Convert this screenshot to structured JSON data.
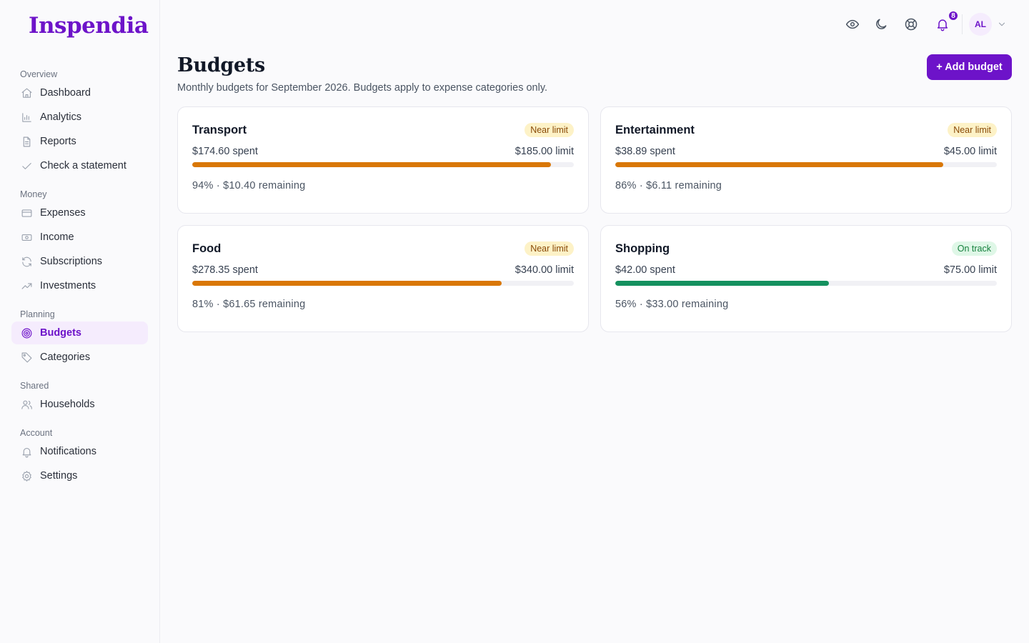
{
  "app": {
    "brand": "Inspendia"
  },
  "sidebar": {
    "sections": [
      {
        "label": "Overview",
        "items": [
          {
            "label": "Dashboard",
            "icon": "home-icon"
          },
          {
            "label": "Analytics",
            "icon": "bar-chart-icon"
          },
          {
            "label": "Reports",
            "icon": "document-icon"
          },
          {
            "label": "Check a statement",
            "icon": "check-icon"
          }
        ]
      },
      {
        "label": "Money",
        "items": [
          {
            "label": "Expenses",
            "icon": "credit-card-icon"
          },
          {
            "label": "Income",
            "icon": "cash-icon"
          },
          {
            "label": "Subscriptions",
            "icon": "refresh-icon"
          },
          {
            "label": "Investments",
            "icon": "trending-up-icon"
          }
        ]
      },
      {
        "label": "Planning",
        "items": [
          {
            "label": "Budgets",
            "icon": "target-icon",
            "active": true
          },
          {
            "label": "Categories",
            "icon": "tag-icon"
          }
        ]
      },
      {
        "label": "Shared",
        "items": [
          {
            "label": "Households",
            "icon": "users-icon"
          }
        ]
      },
      {
        "label": "Account",
        "items": [
          {
            "label": "Notifications",
            "icon": "bell-icon"
          },
          {
            "label": "Settings",
            "icon": "gear-icon"
          }
        ]
      }
    ]
  },
  "topbar": {
    "notification_count": "8",
    "user_initials": "AL"
  },
  "header": {
    "title": "Budgets",
    "subtitle": "Monthly budgets for September 2026. Budgets apply to expense categories only.",
    "add_button_label": "+ Add budget"
  },
  "budgets": [
    {
      "name": "Transport",
      "status": "Near limit",
      "status_kind": "warn",
      "spent": "$174.60 spent",
      "limit": "$185.00 limit",
      "percent": 94,
      "summary": "94% · $10.40 remaining"
    },
    {
      "name": "Entertainment",
      "status": "Near limit",
      "status_kind": "warn",
      "spent": "$38.89 spent",
      "limit": "$45.00 limit",
      "percent": 86,
      "summary": "86% · $6.11 remaining"
    },
    {
      "name": "Food",
      "status": "Near limit",
      "status_kind": "warn",
      "spent": "$278.35 spent",
      "limit": "$340.00 limit",
      "percent": 81,
      "summary": "81% · $61.65 remaining"
    },
    {
      "name": "Shopping",
      "status": "On track",
      "status_kind": "ok",
      "spent": "$42.00 spent",
      "limit": "$75.00 limit",
      "percent": 56,
      "summary": "56% · $33.00 remaining"
    }
  ],
  "colors": {
    "accent": "#6d13c9",
    "warn": "#d97706",
    "ok": "#15915f"
  }
}
